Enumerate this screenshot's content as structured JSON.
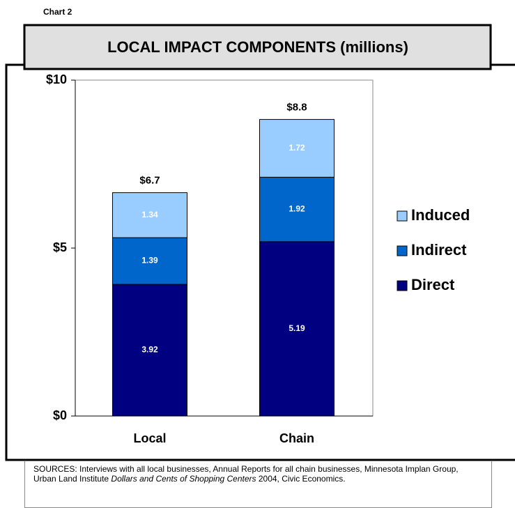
{
  "label": "Chart 2",
  "chart_data": {
    "type": "stacked_bar",
    "title": "LOCAL IMPACT COMPONENTS (millions)",
    "categories": [
      "Local",
      "Chain"
    ],
    "series": [
      {
        "name": "Direct",
        "color": "#000080",
        "values": [
          3.92,
          5.19
        ]
      },
      {
        "name": "Indirect",
        "color": "#0066cc",
        "values": [
          1.39,
          1.92
        ]
      },
      {
        "name": "Induced",
        "color": "#99ccff",
        "values": [
          1.34,
          1.72
        ]
      }
    ],
    "total_labels": [
      "$6.7",
      "$8.8"
    ],
    "ylim": [
      0,
      10
    ],
    "yticks": [
      {
        "value": 0,
        "label": "$0"
      },
      {
        "value": 5,
        "label": "$5"
      },
      {
        "value": 10,
        "label": "$10"
      }
    ],
    "legend": "right"
  },
  "source": [
    "SOURCES: Interviews with all local businesses, Annual Reports for all chain businesses, Minnesota Implan Group, Urban Land Institute ",
    "Dollars and Cents of Shopping Centers",
    " 2004, Civic Economics."
  ]
}
